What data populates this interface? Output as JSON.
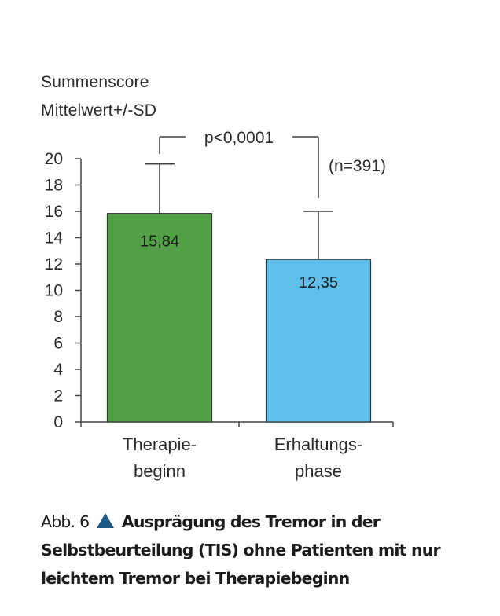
{
  "chart_data": {
    "type": "bar",
    "y_label_lines": [
      "Summenscore",
      "Mittelwert+/-SD"
    ],
    "categories": [
      [
        "Therapie-",
        "beginn"
      ],
      [
        "Erhaltungs-",
        "phase"
      ]
    ],
    "values": [
      15.84,
      12.35
    ],
    "value_labels": [
      "15,84",
      "12,35"
    ],
    "error_upper": [
      19.6,
      16.0
    ],
    "bar_colors": [
      "#52a146",
      "#5fbfeb"
    ],
    "ylim": [
      0,
      20
    ],
    "yticks": [
      0,
      2,
      4,
      6,
      8,
      10,
      12,
      14,
      16,
      18,
      20
    ],
    "annotations": {
      "significance": "p<0,0001",
      "n": "(n=391)"
    },
    "grid": false
  },
  "caption": {
    "prefix": "Abb. 6",
    "icon": "triangle-icon",
    "icon_color": "#1f5a86",
    "title": "Ausprägung des Tremor in der Selbstbeurteilung (TIS) ohne Patienten mit nur leichtem Tremor bei Therapiebeginn"
  }
}
